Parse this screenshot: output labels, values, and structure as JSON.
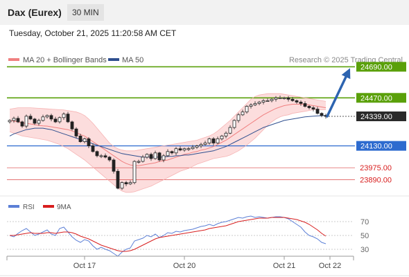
{
  "header": {
    "title": "Dax (Eurex)",
    "timeframe": "30 MIN",
    "datetime": "Tuesday, October 21, 2025 11:20:58 AM CET"
  },
  "colors": {
    "price_candles": "#222222",
    "ma20_bollinger": "#f08080",
    "bollinger_fill": "#fbd5d5",
    "ma50": "#2f4f8f",
    "resistance": "#5aa00a",
    "support": "#2d6bcf",
    "minor_level": "#e06060",
    "forecast_arrow": "#2d64b0",
    "rsi": "#5b7fd6",
    "rsi_ma": "#d81e1e"
  },
  "chart_data": [
    {
      "type": "candlestick",
      "legend": [
        {
          "name": "MA 20 + Bollinger Bands",
          "color": "#f08080"
        },
        {
          "name": "MA 50",
          "color": "#2f4f8f"
        }
      ],
      "legend_placement": "top-left",
      "credit": "Research © 2025 Trading Central",
      "x_ticks": [
        {
          "label": "Oct 17",
          "bar": 18
        },
        {
          "label": "Oct 20",
          "bar": 42
        },
        {
          "label": "Oct 21",
          "bar": 66
        },
        {
          "label": "Oct 22",
          "bar": 77
        }
      ],
      "levels": [
        {
          "label": "24690.00",
          "value": 24690,
          "kind": "resistance"
        },
        {
          "label": "24470.00",
          "value": 24470,
          "kind": "resistance"
        },
        {
          "label": "24339.00",
          "value": 24339,
          "kind": "current"
        },
        {
          "label": "24130.00",
          "value": 24130,
          "kind": "support"
        },
        {
          "label": "23975.00",
          "value": 23975,
          "kind": "minor"
        },
        {
          "label": "23890.00",
          "value": 23890,
          "kind": "minor"
        }
      ],
      "close": [
        24310,
        24325,
        24300,
        24270,
        24340,
        24320,
        24290,
        24310,
        24335,
        24345,
        24320,
        24300,
        24330,
        24355,
        24300,
        24250,
        24200,
        24160,
        24180,
        24130,
        24090,
        24060,
        24060,
        24050,
        24030,
        23950,
        23830,
        23870,
        23860,
        23870,
        24020,
        24020,
        24050,
        24070,
        24040,
        24080,
        24030,
        24060,
        24090,
        24080,
        24110,
        24100,
        24110,
        24110,
        24120,
        24130,
        24140,
        24150,
        24180,
        24150,
        24180,
        24200,
        24220,
        24260,
        24310,
        24350,
        24370,
        24410,
        24420,
        24430,
        24440,
        24450,
        24450,
        24460,
        24470,
        24470,
        24470,
        24460,
        24450,
        24440,
        24430,
        24410,
        24400,
        24390,
        24360,
        24345,
        24339
      ],
      "ma20": [
        24310,
        24305,
        24300,
        24290,
        24290,
        24285,
        24280,
        24275,
        24272,
        24270,
        24265,
        24260,
        24255,
        24250,
        24245,
        24235,
        24225,
        24210,
        24200,
        24180,
        24160,
        24140,
        24120,
        24100,
        24080,
        24060,
        24040,
        24020,
        24005,
        23995,
        23990,
        23990,
        23995,
        24000,
        24005,
        24010,
        24020,
        24025,
        24030,
        24040,
        24050,
        24060,
        24070,
        24075,
        24085,
        24090,
        24100,
        24105,
        24115,
        24125,
        24140,
        24155,
        24170,
        24190,
        24210,
        24230,
        24250,
        24270,
        24290,
        24310,
        24330,
        24350,
        24365,
        24380,
        24395,
        24405,
        24415,
        24420,
        24425,
        24425,
        24425,
        24425,
        24420,
        24415,
        24410,
        24405,
        24400
      ],
      "ma50": [
        24200,
        24215,
        24225,
        24235,
        24245,
        24250,
        24255,
        24255,
        24255,
        24250,
        24245,
        24235,
        24225,
        24215,
        24205,
        24195,
        24185,
        24175,
        24165,
        24155,
        24145,
        24135,
        24125,
        24115,
        24105,
        24095,
        24085,
        24075,
        24070,
        24065,
        24060,
        24055,
        24050,
        24050,
        24050,
        24050,
        24050,
        24050,
        24055,
        24055,
        24060,
        24060,
        24065,
        24065,
        24070,
        24075,
        24080,
        24085,
        24090,
        24095,
        24105,
        24115,
        24125,
        24140,
        24155,
        24170,
        24185,
        24200,
        24215,
        24230,
        24245,
        24260,
        24270,
        24280,
        24290,
        24300,
        24310,
        24315,
        24320,
        24325,
        24330,
        24335,
        24338,
        24340,
        24342,
        24344,
        24345
      ],
      "bb_upper": [
        24390,
        24395,
        24400,
        24400,
        24400,
        24400,
        24398,
        24396,
        24394,
        24392,
        24390,
        24388,
        24386,
        24384,
        24380,
        24375,
        24370,
        24360,
        24345,
        24320,
        24290,
        24255,
        24220,
        24185,
        24150,
        24125,
        24110,
        24100,
        24095,
        24095,
        24095,
        24100,
        24105,
        24110,
        24115,
        24120,
        24125,
        24130,
        24135,
        24140,
        24145,
        24150,
        24155,
        24160,
        24165,
        24170,
        24180,
        24190,
        24200,
        24215,
        24235,
        24260,
        24285,
        24310,
        24340,
        24370,
        24400,
        24430,
        24460,
        24480,
        24490,
        24495,
        24500,
        24500,
        24500,
        24500,
        24495,
        24490,
        24485,
        24480,
        24475,
        24470,
        24465,
        24460,
        24455,
        24450,
        24445
      ],
      "bb_lower": [
        24230,
        24220,
        24210,
        24200,
        24195,
        24190,
        24185,
        24180,
        24175,
        24170,
        24160,
        24150,
        24140,
        24125,
        24110,
        24090,
        24070,
        24050,
        24030,
        24005,
        23980,
        23955,
        23930,
        23905,
        23880,
        23855,
        23830,
        23810,
        23800,
        23800,
        23805,
        23815,
        23825,
        23835,
        23845,
        23860,
        23875,
        23890,
        23905,
        23920,
        23935,
        23950,
        23960,
        23970,
        23985,
        24000,
        24010,
        24020,
        24030,
        24040,
        24045,
        24050,
        24055,
        24065,
        24080,
        24095,
        24115,
        24135,
        24160,
        24185,
        24215,
        24245,
        24275,
        24300,
        24320,
        24335,
        24345,
        24350,
        24360,
        24365,
        24370,
        24375,
        24380,
        24385,
        24385,
        24385,
        24385
      ],
      "forecast_target": 24690
    },
    {
      "type": "line",
      "legend": [
        {
          "name": "RSI",
          "color": "#5b7fd6"
        },
        {
          "name": "9MA",
          "color": "#d81e1e"
        }
      ],
      "legend_placement": "top-left",
      "y_ticks": [
        70,
        50,
        30
      ],
      "ylim": [
        20,
        80
      ],
      "rsi": [
        50,
        48,
        53,
        57,
        60,
        55,
        50,
        52,
        55,
        58,
        52,
        50,
        60,
        62,
        55,
        48,
        43,
        40,
        44,
        42,
        35,
        30,
        33,
        30,
        28,
        24,
        20,
        26,
        30,
        32,
        42,
        44,
        46,
        50,
        48,
        52,
        47,
        50,
        54,
        53,
        56,
        55,
        57,
        58,
        59,
        61,
        63,
        64,
        66,
        64,
        67,
        69,
        70,
        72,
        74,
        76,
        75,
        77,
        78,
        76,
        77,
        76,
        75,
        76,
        77,
        77,
        76,
        74,
        70,
        66,
        62,
        55,
        50,
        48,
        45,
        40,
        38
      ],
      "rsi_ma": [
        50,
        50,
        51,
        52,
        53,
        54,
        53,
        53,
        53,
        54,
        54,
        53,
        54,
        55,
        55,
        54,
        52,
        49,
        47,
        45,
        42,
        39,
        36,
        34,
        32,
        30,
        28,
        27,
        27,
        28,
        30,
        33,
        36,
        39,
        42,
        45,
        47,
        48,
        49,
        50,
        51,
        52,
        53,
        54,
        55,
        56,
        57,
        58,
        60,
        61,
        62,
        63,
        64,
        66,
        68,
        70,
        71,
        72,
        73,
        74,
        75,
        75,
        75,
        76,
        76,
        76,
        76,
        75,
        74,
        73,
        71,
        69,
        66,
        62,
        58,
        53,
        49
      ]
    }
  ]
}
